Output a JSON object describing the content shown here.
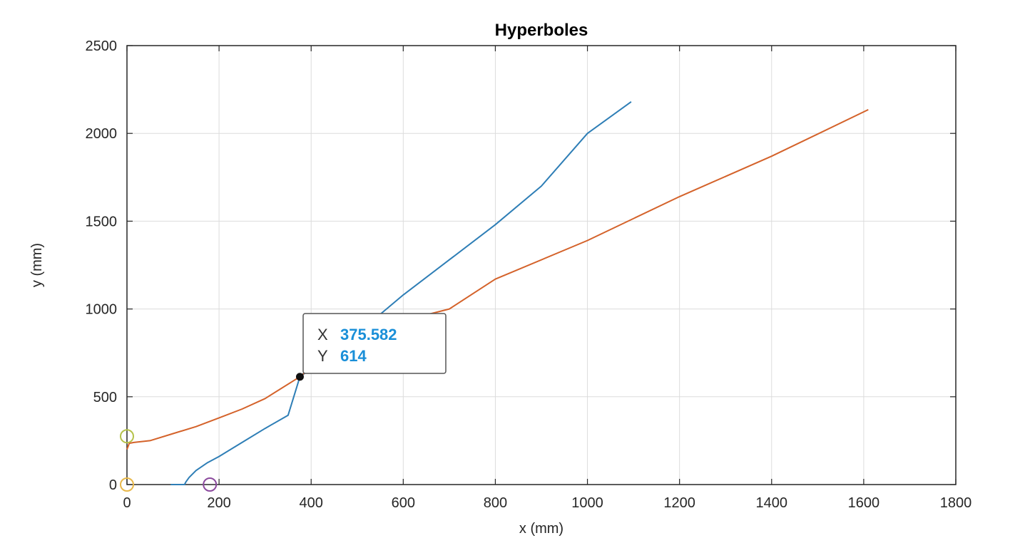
{
  "chart_data": {
    "type": "line",
    "title": "Hyperboles",
    "xlabel": "x (mm)",
    "ylabel": "y (mm)",
    "xlim": [
      0,
      1800
    ],
    "ylim": [
      0,
      2500
    ],
    "xticks": [
      0,
      200,
      400,
      600,
      800,
      1000,
      1200,
      1400,
      1600,
      1800
    ],
    "yticks": [
      0,
      500,
      1000,
      1500,
      2000,
      2500
    ],
    "xtick_labels": [
      "0",
      "200",
      "400",
      "600",
      "800",
      "1000",
      "1200",
      "1400",
      "1600",
      "1800"
    ],
    "ytick_labels": [
      "0",
      "500",
      "1000",
      "1500",
      "2000",
      "2500"
    ],
    "grid": true,
    "series": [
      {
        "color": "#2e7eb6",
        "points": [
          [
            95,
            0
          ],
          [
            125,
            0
          ],
          [
            128,
            15
          ],
          [
            135,
            40
          ],
          [
            150,
            80
          ],
          [
            175,
            125
          ],
          [
            200,
            160
          ],
          [
            250,
            240
          ],
          [
            300,
            320
          ],
          [
            350,
            395
          ],
          [
            375.582,
            614
          ],
          [
            400,
            660
          ],
          [
            450,
            760
          ],
          [
            500,
            850
          ],
          [
            550,
            970
          ],
          [
            600,
            1080
          ],
          [
            700,
            1280
          ],
          [
            800,
            1480
          ],
          [
            900,
            1700
          ],
          [
            1000,
            2000
          ],
          [
            1095,
            2180
          ]
        ]
      },
      {
        "color": "#d4622a",
        "points": [
          [
            0,
            200
          ],
          [
            5,
            235
          ],
          [
            15,
            240
          ],
          [
            50,
            250
          ],
          [
            100,
            290
          ],
          [
            150,
            330
          ],
          [
            200,
            380
          ],
          [
            250,
            430
          ],
          [
            300,
            490
          ],
          [
            375.582,
            614
          ],
          [
            450,
            780
          ],
          [
            550,
            900
          ],
          [
            700,
            1000
          ],
          [
            800,
            1170
          ],
          [
            1000,
            1390
          ],
          [
            1200,
            1640
          ],
          [
            1400,
            1870
          ],
          [
            1610,
            2135
          ]
        ]
      }
    ],
    "markers": [
      {
        "x": 0,
        "y": 275,
        "color": "#b5c24a"
      },
      {
        "x": 0,
        "y": 0,
        "color": "#e8b84a"
      },
      {
        "x": 180,
        "y": 0,
        "color": "#8b4a9e"
      }
    ],
    "datatip": {
      "x": 375.582,
      "y": 614,
      "x_key": "X",
      "y_key": "Y",
      "x_value": "375.582",
      "y_value": "614"
    }
  }
}
